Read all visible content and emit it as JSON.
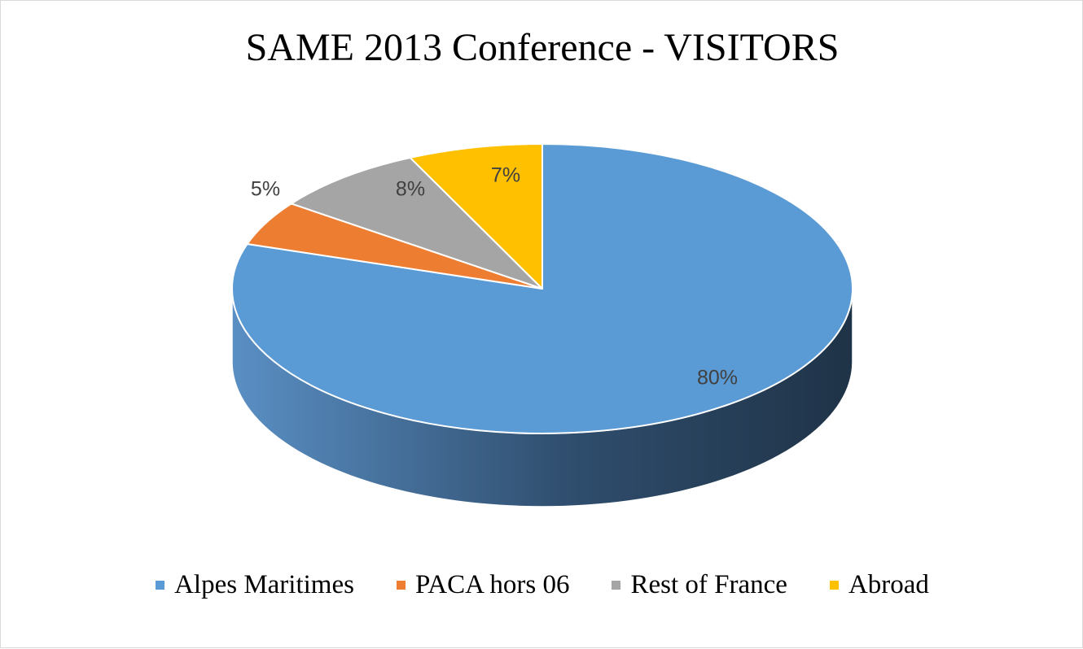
{
  "chart_data": {
    "type": "pie",
    "title": "SAME 2013 Conference - VISITORS",
    "categories": [
      "Alpes Maritimes",
      "PACA hors 06",
      "Rest of France",
      "Abroad"
    ],
    "values": [
      80,
      5,
      8,
      7
    ],
    "data_labels": [
      "80%",
      "5%",
      "8%",
      "7%"
    ],
    "colors": [
      "#5b9bd5",
      "#ed7d31",
      "#a5a5a5",
      "#ffc000"
    ],
    "start_angle_deg": 0,
    "direction": "clockwise",
    "style": "3d",
    "legend_position": "bottom"
  }
}
